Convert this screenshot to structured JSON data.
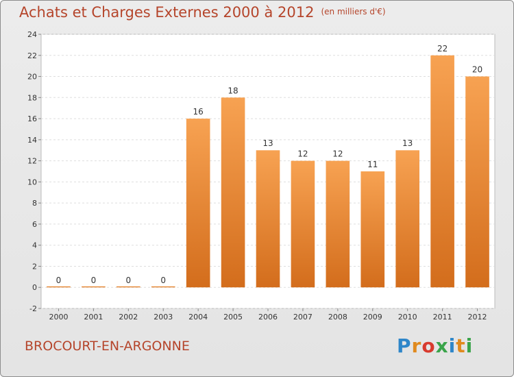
{
  "title": "Achats et Charges Externes 2000 à 2012",
  "unit": "(en milliers d'€)",
  "town": "BROCOURT-EN-ARGONNE",
  "logo": [
    "P",
    "r",
    "o",
    "x",
    "i",
    "t",
    "i"
  ],
  "chart_data": {
    "type": "bar",
    "categories": [
      "2000",
      "2001",
      "2002",
      "2003",
      "2004",
      "2005",
      "2006",
      "2007",
      "2008",
      "2009",
      "2010",
      "2011",
      "2012"
    ],
    "values": [
      0,
      0,
      0,
      0,
      16,
      18,
      13,
      12,
      12,
      11,
      13,
      22,
      20
    ],
    "ylim": [
      -2,
      24
    ],
    "yticks": [
      -2,
      0,
      2,
      4,
      6,
      8,
      10,
      12,
      14,
      16,
      18,
      20,
      22,
      24
    ],
    "grid": true,
    "bar_color": "#f0923a",
    "bar_color_dark": "#d9731c"
  }
}
